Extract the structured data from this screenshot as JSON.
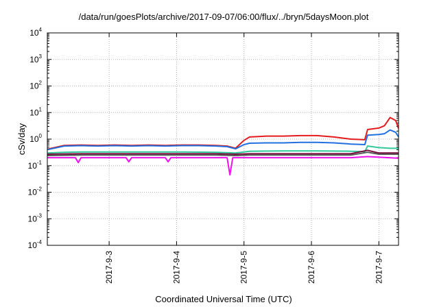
{
  "chart_data": {
    "type": "line",
    "title": "/data/run/goesPlots/archive/2017-09-07/06:00/flux/../bryn/5daysMoon.plot",
    "xlabel": "Coordinated Universal Time (UTC)",
    "ylabel": "cSv/day",
    "y_scale": "log",
    "ylim": [
      0.0001,
      10000
    ],
    "y_ticks": [
      {
        "base": "10",
        "exp": "-4"
      },
      {
        "base": "10",
        "exp": "-3"
      },
      {
        "base": "10",
        "exp": "-2"
      },
      {
        "base": "10",
        "exp": "-1"
      },
      {
        "base": "10",
        "exp": "0"
      },
      {
        "base": "10",
        "exp": "1"
      },
      {
        "base": "10",
        "exp": "2"
      },
      {
        "base": "10",
        "exp": "3"
      },
      {
        "base": "10",
        "exp": "4"
      }
    ],
    "x_range_days": [
      "2017-09-02 02:00",
      "2017-09-07 07:00"
    ],
    "x_ticks": [
      "2017-9-3",
      "2017-9-4",
      "2017-9-5",
      "2017-9-6",
      "2017-9-7"
    ],
    "grid": true,
    "legend": "none",
    "series": [
      {
        "color": "#e31a1c",
        "points": [
          [
            "2017-09-02 02:00",
            0.42
          ],
          [
            "2017-09-02 08:00",
            0.58
          ],
          [
            "2017-09-02 14:00",
            0.6
          ],
          [
            "2017-09-02 20:00",
            0.58
          ],
          [
            "2017-09-03 02:00",
            0.6
          ],
          [
            "2017-09-03 08:00",
            0.58
          ],
          [
            "2017-09-03 14:00",
            0.6
          ],
          [
            "2017-09-03 20:00",
            0.58
          ],
          [
            "2017-09-04 02:00",
            0.6
          ],
          [
            "2017-09-04 08:00",
            0.6
          ],
          [
            "2017-09-04 14:00",
            0.58
          ],
          [
            "2017-09-04 18:00",
            0.55
          ],
          [
            "2017-09-04 21:00",
            0.45
          ],
          [
            "2017-09-05 00:00",
            0.9
          ],
          [
            "2017-09-05 02:00",
            1.2
          ],
          [
            "2017-09-05 08:00",
            1.3
          ],
          [
            "2017-09-05 14:00",
            1.3
          ],
          [
            "2017-09-05 20:00",
            1.35
          ],
          [
            "2017-09-06 02:00",
            1.35
          ],
          [
            "2017-09-06 08:00",
            1.2
          ],
          [
            "2017-09-06 14:00",
            1.0
          ],
          [
            "2017-09-06 19:00",
            0.95
          ],
          [
            "2017-09-06 20:00",
            2.3
          ],
          [
            "2017-09-07 00:00",
            2.6
          ],
          [
            "2017-09-07 02:00",
            3.2
          ],
          [
            "2017-09-07 04:00",
            6.5
          ],
          [
            "2017-09-07 06:00",
            5.0
          ],
          [
            "2017-09-07 07:00",
            2.5
          ]
        ]
      },
      {
        "color": "#1f6fe0",
        "points": [
          [
            "2017-09-02 02:00",
            0.4
          ],
          [
            "2017-09-02 08:00",
            0.55
          ],
          [
            "2017-09-02 14:00",
            0.57
          ],
          [
            "2017-09-02 20:00",
            0.55
          ],
          [
            "2017-09-03 02:00",
            0.57
          ],
          [
            "2017-09-03 08:00",
            0.55
          ],
          [
            "2017-09-03 14:00",
            0.57
          ],
          [
            "2017-09-03 20:00",
            0.55
          ],
          [
            "2017-09-04 02:00",
            0.57
          ],
          [
            "2017-09-04 08:00",
            0.57
          ],
          [
            "2017-09-04 14:00",
            0.55
          ],
          [
            "2017-09-04 18:00",
            0.52
          ],
          [
            "2017-09-04 21:00",
            0.43
          ],
          [
            "2017-09-05 00:00",
            0.62
          ],
          [
            "2017-09-05 02:00",
            0.7
          ],
          [
            "2017-09-05 08:00",
            0.72
          ],
          [
            "2017-09-05 14:00",
            0.72
          ],
          [
            "2017-09-05 20:00",
            0.75
          ],
          [
            "2017-09-06 02:00",
            0.75
          ],
          [
            "2017-09-06 08:00",
            0.72
          ],
          [
            "2017-09-06 14:00",
            0.65
          ],
          [
            "2017-09-06 19:00",
            0.62
          ],
          [
            "2017-09-06 20:00",
            1.4
          ],
          [
            "2017-09-07 00:00",
            1.5
          ],
          [
            "2017-09-07 02:00",
            1.6
          ],
          [
            "2017-09-07 04:00",
            2.2
          ],
          [
            "2017-09-07 06:00",
            1.8
          ],
          [
            "2017-09-07 07:00",
            1.2
          ]
        ]
      },
      {
        "color": "#2fc99a",
        "points": [
          [
            "2017-09-02 02:00",
            0.3
          ],
          [
            "2017-09-02 08:00",
            0.32
          ],
          [
            "2017-09-02 14:00",
            0.33
          ],
          [
            "2017-09-03 02:00",
            0.33
          ],
          [
            "2017-09-03 14:00",
            0.33
          ],
          [
            "2017-09-04 02:00",
            0.33
          ],
          [
            "2017-09-04 14:00",
            0.32
          ],
          [
            "2017-09-04 21:00",
            0.3
          ],
          [
            "2017-09-05 02:00",
            0.35
          ],
          [
            "2017-09-05 14:00",
            0.36
          ],
          [
            "2017-09-06 02:00",
            0.36
          ],
          [
            "2017-09-06 14:00",
            0.35
          ],
          [
            "2017-09-06 19:00",
            0.34
          ],
          [
            "2017-09-06 20:00",
            0.55
          ],
          [
            "2017-09-07 00:00",
            0.48
          ],
          [
            "2017-09-07 04:00",
            0.45
          ],
          [
            "2017-09-07 07:00",
            0.45
          ]
        ]
      },
      {
        "color": "#7a0a3a",
        "points": [
          [
            "2017-09-02 02:00",
            0.27
          ],
          [
            "2017-09-02 14:00",
            0.28
          ],
          [
            "2017-09-03 02:00",
            0.28
          ],
          [
            "2017-09-03 14:00",
            0.28
          ],
          [
            "2017-09-04 02:00",
            0.28
          ],
          [
            "2017-09-04 14:00",
            0.28
          ],
          [
            "2017-09-04 21:00",
            0.27
          ],
          [
            "2017-09-05 02:00",
            0.28
          ],
          [
            "2017-09-05 14:00",
            0.28
          ],
          [
            "2017-09-06 02:00",
            0.28
          ],
          [
            "2017-09-06 14:00",
            0.28
          ],
          [
            "2017-09-06 20:00",
            0.38
          ],
          [
            "2017-09-07 00:00",
            0.3
          ],
          [
            "2017-09-07 07:00",
            0.3
          ]
        ]
      },
      {
        "color": "#555555",
        "points": [
          [
            "2017-09-02 02:00",
            0.24
          ],
          [
            "2017-09-02 14:00",
            0.25
          ],
          [
            "2017-09-03 02:00",
            0.25
          ],
          [
            "2017-09-03 14:00",
            0.25
          ],
          [
            "2017-09-04 02:00",
            0.25
          ],
          [
            "2017-09-04 14:00",
            0.25
          ],
          [
            "2017-09-04 21:00",
            0.24
          ],
          [
            "2017-09-05 02:00",
            0.25
          ],
          [
            "2017-09-05 14:00",
            0.25
          ],
          [
            "2017-09-06 02:00",
            0.25
          ],
          [
            "2017-09-06 14:00",
            0.25
          ],
          [
            "2017-09-06 20:00",
            0.32
          ],
          [
            "2017-09-07 00:00",
            0.27
          ],
          [
            "2017-09-07 07:00",
            0.27
          ]
        ]
      },
      {
        "color": "#ee10ee",
        "points": [
          [
            "2017-09-02 02:00",
            0.2
          ],
          [
            "2017-09-02 12:00",
            0.2
          ],
          [
            "2017-09-02 13:00",
            0.13
          ],
          [
            "2017-09-02 14:00",
            0.2
          ],
          [
            "2017-09-03 06:00",
            0.2
          ],
          [
            "2017-09-03 07:00",
            0.14
          ],
          [
            "2017-09-03 08:00",
            0.2
          ],
          [
            "2017-09-03 20:00",
            0.2
          ],
          [
            "2017-09-03 21:00",
            0.14
          ],
          [
            "2017-09-03 22:00",
            0.2
          ],
          [
            "2017-09-04 18:00",
            0.2
          ],
          [
            "2017-09-04 19:00",
            0.045
          ],
          [
            "2017-09-04 20:00",
            0.2
          ],
          [
            "2017-09-05 14:00",
            0.2
          ],
          [
            "2017-09-06 14:00",
            0.2
          ],
          [
            "2017-09-06 20:00",
            0.22
          ],
          [
            "2017-09-07 07:00",
            0.19
          ]
        ]
      }
    ]
  }
}
